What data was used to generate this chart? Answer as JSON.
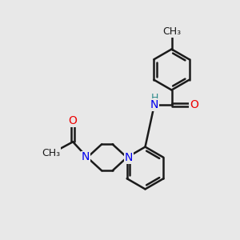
{
  "bg_color": "#e8e8e8",
  "bond_color": "#1a1a1a",
  "N_color": "#0000ee",
  "O_color": "#ee0000",
  "H_color": "#2e8b8b",
  "line_width": 1.8,
  "font_size": 10,
  "fig_w": 3.0,
  "fig_h": 3.0,
  "dpi": 100,
  "xlim": [
    0,
    10
  ],
  "ylim": [
    0,
    10
  ],
  "dbl_off": 0.07
}
